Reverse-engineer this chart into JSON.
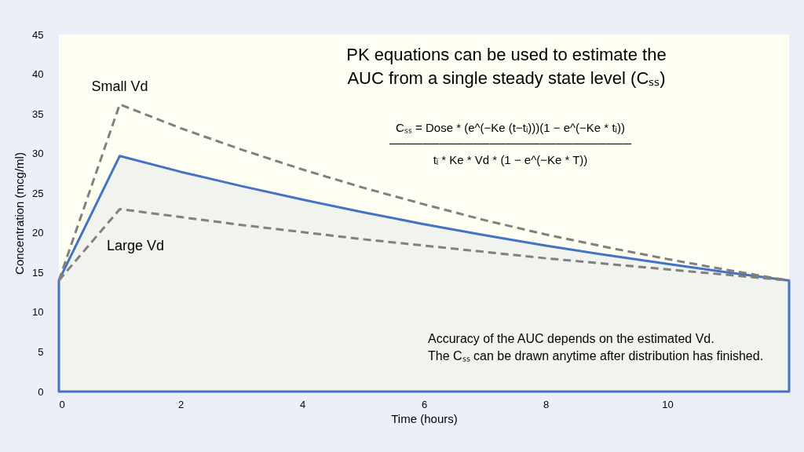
{
  "chart_data": {
    "type": "line",
    "xlabel": "Time (hours)",
    "ylabel": "Concentration (mcg/ml)",
    "xlim": [
      0,
      12
    ],
    "ylim": [
      0,
      45
    ],
    "xticks": [
      0,
      2,
      4,
      6,
      8,
      10
    ],
    "yticks": [
      0,
      5,
      10,
      15,
      20,
      25,
      30,
      35,
      40,
      45
    ],
    "grid": false,
    "series": [
      {
        "type": "area",
        "color": "#4472c4",
        "line_style": "solid",
        "x": [
          0,
          1,
          2,
          3,
          4,
          5,
          6,
          7,
          8,
          9,
          10,
          11,
          12
        ],
        "values": [
          14,
          29.7,
          27.7,
          25.9,
          24.2,
          22.6,
          21.1,
          19.7,
          18.4,
          17.2,
          16.1,
          15.0,
          14
        ]
      },
      {
        "name": "Small Vd",
        "color": "#808080",
        "line_style": "dashed",
        "x": [
          0,
          1,
          2,
          3,
          4,
          5,
          6,
          7,
          8,
          9,
          10,
          11,
          12
        ],
        "values": [
          14,
          36.2,
          33.2,
          30.5,
          28.0,
          25.7,
          23.6,
          21.6,
          19.8,
          18.2,
          16.7,
          15.3,
          14
        ]
      },
      {
        "name": "Large Vd",
        "color": "#808080",
        "line_style": "dashed",
        "x": [
          0,
          1,
          2,
          3,
          4,
          5,
          6,
          7,
          8,
          9,
          10,
          11,
          12
        ],
        "values": [
          14,
          23,
          22.0,
          21.0,
          20.1,
          19.2,
          18.4,
          17.6,
          16.8,
          16.1,
          15.4,
          14.7,
          14
        ]
      }
    ],
    "annotations": [
      "PK equations can be used to estimate the\nAUC from a single steady state level (Cₛₛ)",
      "Cₛₛ = Dose * (e^(−Ke (t−tᵢ)))(1 − e^(−Ke * tᵢ))\n─────────────────────────────\ntᵢ * Ke * Vd * (1 − e^(−Ke * T))",
      "Accuracy of the AUC depends on the estimated Vd.\nThe Cₛₛ can be drawn anytime after distribution has finished."
    ]
  }
}
